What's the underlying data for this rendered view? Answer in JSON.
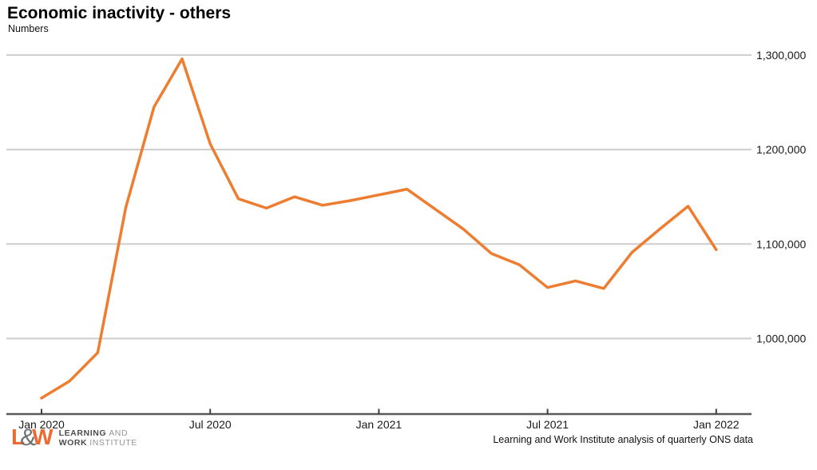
{
  "header": {
    "title": "Economic inactivity - others",
    "subtitle": "Numbers"
  },
  "footer": {
    "source_note": "Learning and Work Institute analysis of quarterly ONS data"
  },
  "logo": {
    "mark_l": "L",
    "mark_amp": "&",
    "mark_w": "W",
    "line1_bold": "LEARNING",
    "line1_light": "AND",
    "line2_bold": "WORK",
    "line2_light": "INSTITUTE"
  },
  "colors": {
    "line": "#ED7D31",
    "gridline": "#CDCDCD",
    "axis": "#595959",
    "tick": "#404040",
    "label_text": "#1a1a1a",
    "logo_orange": "#ED6B33",
    "logo_gray_dark": "#4D4D4F",
    "logo_gray_light": "#939598"
  },
  "chart_data": {
    "type": "line",
    "title": "Economic inactivity - others",
    "ylabel": "Numbers",
    "xlabel": "",
    "grid": "horizontal",
    "legend": "none",
    "series_name": "Economic inactivity - others",
    "x": [
      "Jan 2020",
      "Feb 2020",
      "Mar 2020",
      "Apr 2020",
      "May 2020",
      "Jun 2020",
      "Jul 2020",
      "Aug 2020",
      "Sep 2020",
      "Oct 2020",
      "Nov 2020",
      "Dec 2020",
      "Jan 2021",
      "Feb 2021",
      "Mar 2021",
      "Apr 2021",
      "May 2021",
      "Jun 2021",
      "Jul 2021",
      "Aug 2021",
      "Sep 2021",
      "Oct 2021",
      "Nov 2021",
      "Dec 2021",
      "Jan 2022"
    ],
    "values": [
      937000,
      955000,
      985000,
      1139000,
      1245000,
      1296000,
      1206000,
      1148000,
      1138000,
      1150000,
      1141000,
      1146000,
      1152000,
      1158000,
      1137000,
      1116000,
      1090000,
      1078000,
      1054000,
      1061000,
      1053000,
      1091000,
      1116000,
      1140000,
      1094000
    ],
    "x_axis": {
      "tick_labels": [
        "Jan 2020",
        "Jul 2020",
        "Jan 2021",
        "Jul 2021",
        "Jan 2022"
      ],
      "tick_indices": [
        0,
        6,
        12,
        18,
        24
      ]
    },
    "y_axis": {
      "tick_values": [
        1300000,
        1200000,
        1100000,
        1000000
      ],
      "tick_labels": [
        "1,300,000",
        "1,200,000",
        "1,100,000",
        "1,000,000"
      ],
      "range": [
        920000,
        1320000
      ]
    }
  }
}
